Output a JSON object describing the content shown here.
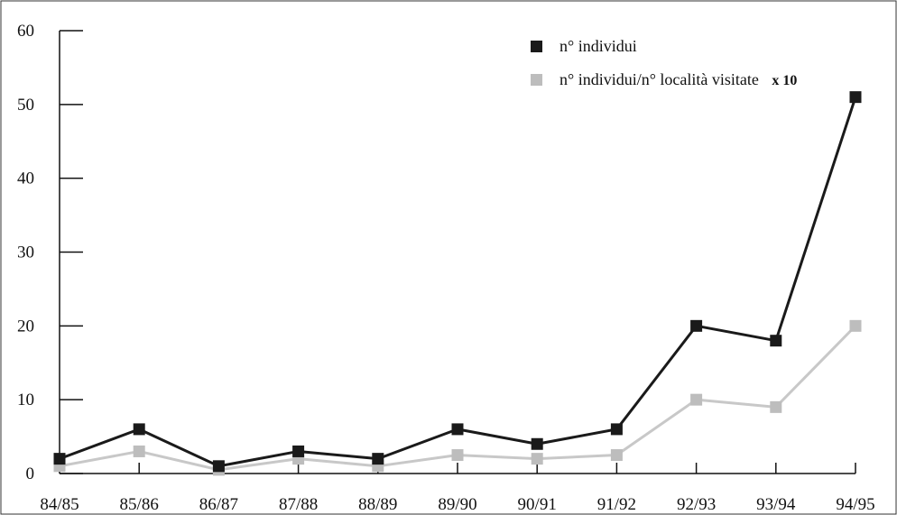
{
  "chart_data": {
    "type": "line",
    "categories": [
      "84/85",
      "85/86",
      "86/87",
      "87/88",
      "88/89",
      "89/90",
      "90/91",
      "91/92",
      "92/93",
      "93/94",
      "94/95"
    ],
    "ylim": [
      0,
      60
    ],
    "y_ticks": [
      0,
      10,
      20,
      30,
      40,
      50,
      60
    ],
    "grid": false,
    "legend_placement": "top-right",
    "series": [
      {
        "name": "n° individui",
        "color": "#1a1a1a",
        "marker_color": "#1a1a1a",
        "values": [
          2,
          6,
          1,
          3,
          2,
          6,
          4,
          6,
          20,
          18,
          51
        ]
      },
      {
        "name": "n° individui/n° località visitate",
        "name_suffix": "x 10",
        "color": "#c8c8c8",
        "marker_color": "#bdbdbd",
        "values": [
          1,
          3,
          0.5,
          2,
          1,
          2.5,
          2,
          2.5,
          10,
          9,
          20
        ]
      }
    ]
  }
}
